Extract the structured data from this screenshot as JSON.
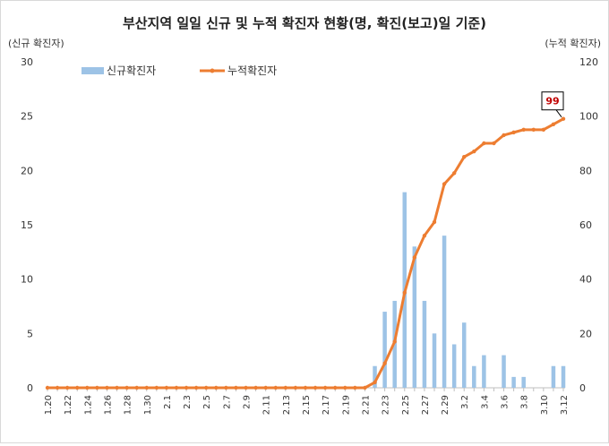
{
  "chart_data": {
    "type": "bar+line",
    "title": "부산지역 일일 신규 및 누적 확진자 현황(명, 확진(보고)일 기준)",
    "ylabel_left": "(신규 확진자)",
    "ylabel_right": "(누적 확진자)",
    "ylim_left": [
      0,
      30
    ],
    "ylim_right": [
      0,
      120
    ],
    "yticks_left": [
      0,
      5,
      10,
      15,
      20,
      25,
      30
    ],
    "yticks_right": [
      0,
      20,
      40,
      60,
      80,
      100,
      120
    ],
    "legend_position": "top-left",
    "grid": false,
    "x": [
      "1.20",
      "1.21",
      "1.22",
      "1.23",
      "1.24",
      "1.25",
      "1.26",
      "1.27",
      "1.28",
      "1.29",
      "1.30",
      "1.31",
      "2.1",
      "2.2",
      "2.3",
      "2.4",
      "2.5",
      "2.6",
      "2.7",
      "2.8",
      "2.9",
      "2.10",
      "2.11",
      "2.12",
      "2.13",
      "2.14",
      "2.15",
      "2.16",
      "2.17",
      "2.18",
      "2.19",
      "2.20",
      "2.21",
      "2.22",
      "2.23",
      "2.24",
      "2.25",
      "2.26",
      "2.27",
      "2.28",
      "2.29",
      "3.1",
      "3.2",
      "3.3",
      "3.4",
      "3.5",
      "3.6",
      "3.7",
      "3.8",
      "3.9",
      "3.10",
      "3.11",
      "3.12"
    ],
    "x_tick_labels": [
      "1.20",
      "1.22",
      "1.24",
      "1.26",
      "1.28",
      "1.30",
      "2.1",
      "2.3",
      "2.5",
      "2.7",
      "2.9",
      "2.11",
      "2.13",
      "2.15",
      "2.17",
      "2.19",
      "2.21",
      "2.23",
      "2.25",
      "2.27",
      "2.29",
      "3.2",
      "3.4",
      "3.6",
      "3.8",
      "3.10",
      "3.12"
    ],
    "series": [
      {
        "name": "신규확진자",
        "type": "bar",
        "axis": "left",
        "color": "#9dc3e6",
        "values": [
          0,
          0,
          0,
          0,
          0,
          0,
          0,
          0,
          0,
          0,
          0,
          0,
          0,
          0,
          0,
          0,
          0,
          0,
          0,
          0,
          0,
          0,
          0,
          0,
          0,
          0,
          0,
          0,
          0,
          0,
          0,
          0,
          0,
          2,
          7,
          8,
          18,
          13,
          8,
          5,
          14,
          4,
          6,
          2,
          3,
          0,
          3,
          1,
          1,
          0,
          0,
          2,
          2
        ]
      },
      {
        "name": "누적확진자",
        "type": "line",
        "axis": "right",
        "color": "#ed7d31",
        "values": [
          0,
          0,
          0,
          0,
          0,
          0,
          0,
          0,
          0,
          0,
          0,
          0,
          0,
          0,
          0,
          0,
          0,
          0,
          0,
          0,
          0,
          0,
          0,
          0,
          0,
          0,
          0,
          0,
          0,
          0,
          0,
          0,
          0,
          2,
          9,
          17,
          35,
          48,
          56,
          61,
          75,
          79,
          85,
          87,
          90,
          90,
          93,
          94,
          95,
          95,
          95,
          97,
          99
        ]
      }
    ],
    "annotation": {
      "label": "99"
    }
  }
}
